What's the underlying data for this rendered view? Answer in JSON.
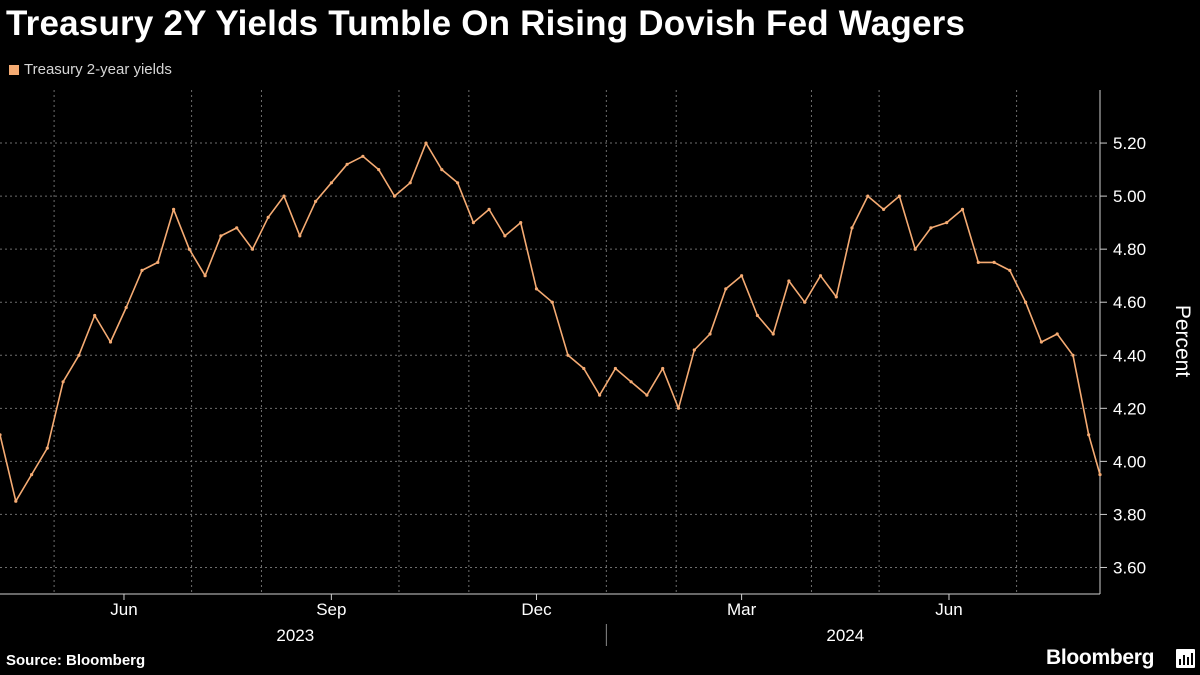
{
  "title": "Treasury 2Y Yields Tumble On Rising Dovish Fed Wagers",
  "source": "Source: Bloomberg",
  "brand": "Bloomberg",
  "brand_icon": "terminal-icon",
  "colors": {
    "background": "#000000",
    "series": "#f5ab73",
    "grid": "#6e6e6e",
    "text": "#ffffff"
  },
  "chart_data": {
    "type": "line",
    "title": "Treasury 2Y Yields Tumble On Rising Dovish Fed Wagers",
    "xlabel": "",
    "ylabel": "Percent",
    "ylim": [
      3.5,
      5.4
    ],
    "y_axis_side": "right",
    "grid": true,
    "legend_position": "top-left",
    "yticks": [
      3.6,
      3.8,
      4.0,
      4.2,
      4.4,
      4.6,
      4.8,
      5.0,
      5.2
    ],
    "ytick_labels": [
      "3.60",
      "3.80",
      "4.00",
      "4.20",
      "4.40",
      "4.60",
      "4.80",
      "5.00",
      "5.20"
    ],
    "x_range": [
      "2023-04-07",
      "2024-08-07"
    ],
    "x_gridlines": [
      "2023-05-01",
      "2023-07-01",
      "2023-08-01",
      "2023-10-01",
      "2023-11-01",
      "2024-01-01",
      "2024-02-01",
      "2024-04-01",
      "2024-05-01",
      "2024-07-01"
    ],
    "xticks": [
      {
        "label": "Jun",
        "date": "2023-06-01"
      },
      {
        "label": "Sep",
        "date": "2023-09-01"
      },
      {
        "label": "Dec",
        "date": "2023-12-01"
      },
      {
        "label": "Mar",
        "date": "2024-03-01"
      },
      {
        "label": "Jun",
        "date": "2024-06-01"
      }
    ],
    "years": [
      {
        "label": "2023",
        "center": "2023-08-16"
      },
      {
        "label": "2024",
        "center": "2024-04-16"
      }
    ],
    "year_separator": "2024-01-01",
    "series": [
      {
        "name": "Treasury 2-year yields",
        "x": [
          "2023-04-07",
          "2023-04-14",
          "2023-04-21",
          "2023-04-28",
          "2023-05-05",
          "2023-05-12",
          "2023-05-19",
          "2023-05-26",
          "2023-06-02",
          "2023-06-09",
          "2023-06-16",
          "2023-06-23",
          "2023-06-30",
          "2023-07-07",
          "2023-07-14",
          "2023-07-21",
          "2023-07-28",
          "2023-08-04",
          "2023-08-11",
          "2023-08-18",
          "2023-08-25",
          "2023-09-01",
          "2023-09-08",
          "2023-09-15",
          "2023-09-22",
          "2023-09-29",
          "2023-10-06",
          "2023-10-13",
          "2023-10-20",
          "2023-10-27",
          "2023-11-03",
          "2023-11-10",
          "2023-11-17",
          "2023-11-24",
          "2023-12-01",
          "2023-12-08",
          "2023-12-15",
          "2023-12-22",
          "2023-12-29",
          "2024-01-05",
          "2024-01-12",
          "2024-01-19",
          "2024-01-26",
          "2024-02-02",
          "2024-02-09",
          "2024-02-16",
          "2024-02-23",
          "2024-03-01",
          "2024-03-08",
          "2024-03-15",
          "2024-03-22",
          "2024-03-29",
          "2024-04-05",
          "2024-04-12",
          "2024-04-19",
          "2024-04-26",
          "2024-05-03",
          "2024-05-10",
          "2024-05-17",
          "2024-05-24",
          "2024-05-31",
          "2024-06-07",
          "2024-06-14",
          "2024-06-21",
          "2024-06-28",
          "2024-07-05",
          "2024-07-12",
          "2024-07-19",
          "2024-07-26",
          "2024-08-02",
          "2024-08-07"
        ],
        "values": [
          4.1,
          3.85,
          3.95,
          4.05,
          4.3,
          4.4,
          4.55,
          4.45,
          4.58,
          4.72,
          4.75,
          4.95,
          4.8,
          4.7,
          4.85,
          4.88,
          4.8,
          4.92,
          5.0,
          4.85,
          4.98,
          5.05,
          5.12,
          5.15,
          5.1,
          5.0,
          5.05,
          5.2,
          5.1,
          5.05,
          4.9,
          4.95,
          4.85,
          4.9,
          4.65,
          4.6,
          4.4,
          4.35,
          4.25,
          4.35,
          4.3,
          4.25,
          4.35,
          4.2,
          4.42,
          4.48,
          4.65,
          4.7,
          4.55,
          4.48,
          4.68,
          4.6,
          4.7,
          4.62,
          4.88,
          5.0,
          4.95,
          5.0,
          4.8,
          4.88,
          4.9,
          4.95,
          4.75,
          4.75,
          4.72,
          4.6,
          4.45,
          4.48,
          4.4,
          4.1,
          3.95
        ]
      }
    ]
  }
}
